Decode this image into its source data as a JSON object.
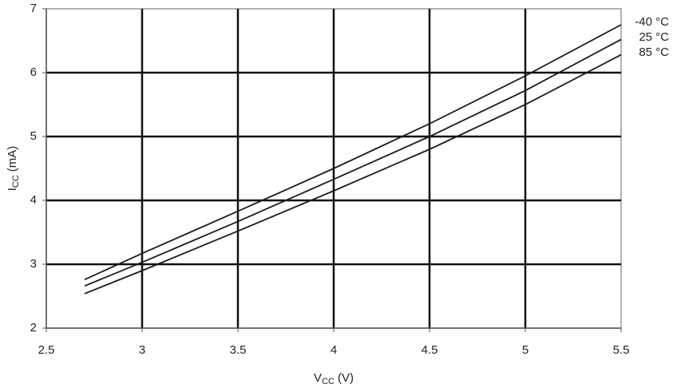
{
  "chart_data": {
    "type": "line",
    "x_label": {
      "symbol": "V",
      "subscript": "CC",
      "unit": "(V)"
    },
    "y_label": {
      "symbol": "I",
      "subscript": "CC",
      "unit": "(mA)"
    },
    "x": [
      2.7,
      3.0,
      3.5,
      4.0,
      4.5,
      5.0,
      5.5
    ],
    "series": [
      {
        "name": "-40 °C",
        "color": "#1a1a1a",
        "values": [
          2.76,
          3.17,
          3.83,
          4.5,
          5.2,
          5.95,
          6.75
        ]
      },
      {
        "name": "25 °C",
        "color": "#1a1a1a",
        "values": [
          2.66,
          3.03,
          3.67,
          4.33,
          5.0,
          5.72,
          6.52
        ]
      },
      {
        "name": "85 °C",
        "color": "#1a1a1a",
        "values": [
          2.54,
          2.9,
          3.52,
          4.15,
          4.8,
          5.5,
          6.28
        ]
      }
    ],
    "xlim": [
      2.5,
      5.5
    ],
    "xticks": [
      2.5,
      3,
      3.5,
      4,
      4.5,
      5,
      5.5
    ],
    "ylim": [
      2,
      7
    ],
    "yticks": [
      2,
      3,
      4,
      5,
      6,
      7
    ],
    "grid": true
  }
}
